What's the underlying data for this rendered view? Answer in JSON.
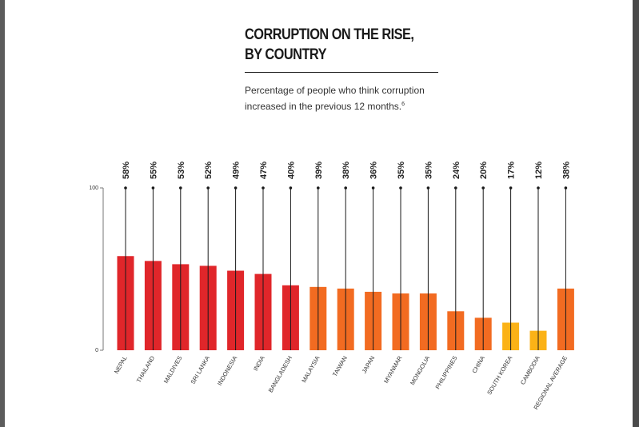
{
  "title_line1": "CORRUPTION ON THE RISE,",
  "title_line2": "BY COUNTRY",
  "subtitle_line1": "Percentage of people who think corruption",
  "subtitle_line2": "increased in the previous 12 months.",
  "subtitle_note": "6",
  "chart_data": {
    "type": "bar",
    "title": "CORRUPTION ON THE RISE, BY COUNTRY",
    "subtitle": "Percentage of people who think corruption increased in the previous 12 months.",
    "ylim": [
      0,
      100
    ],
    "yticks": [
      "0",
      "100"
    ],
    "grid": false,
    "categories": [
      "NEPAL",
      "THAILAND",
      "MALDIVES",
      "SRI LANKA",
      "INDONESIA",
      "INDIA",
      "BANGLADESH",
      "MALAYSIA",
      "TAIWAN",
      "JAPAN",
      "MYANMAR",
      "MONGOLIA",
      "PHILIPPINES",
      "CHINA",
      "SOUTH KOREA",
      "CAMBODIA",
      "REGIONAL AVERAGE"
    ],
    "values": [
      58,
      55,
      53,
      52,
      49,
      47,
      40,
      39,
      38,
      36,
      35,
      35,
      24,
      20,
      17,
      12,
      38
    ],
    "value_labels": [
      "58%",
      "55%",
      "53%",
      "52%",
      "49%",
      "47%",
      "40%",
      "39%",
      "38%",
      "36%",
      "35%",
      "35%",
      "24%",
      "20%",
      "17%",
      "12%",
      "38%"
    ],
    "colors": [
      "#e0262a",
      "#e0262a",
      "#e0262a",
      "#e0262a",
      "#e0262a",
      "#e0262a",
      "#e0262a",
      "#f26b21",
      "#f26b21",
      "#f26b21",
      "#f26b21",
      "#f26b21",
      "#f26b21",
      "#f26b21",
      "#fbb216",
      "#fbb216",
      "#f26b21"
    ]
  }
}
